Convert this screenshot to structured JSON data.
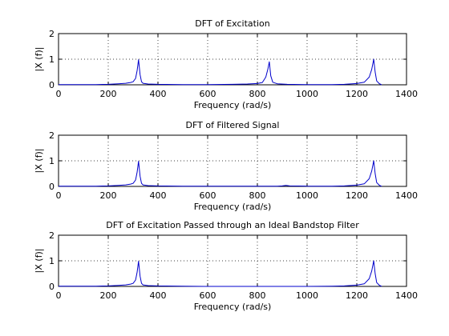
{
  "colors": {
    "series": "#0000cc",
    "axes": "#000000",
    "background": "#ffffff"
  },
  "chart_data": [
    {
      "type": "line",
      "title": "DFT of Excitation",
      "xlabel": "Frequency (rad/s)",
      "ylabel": "|X (f)|",
      "xlim": [
        0,
        1400
      ],
      "ylim": [
        0,
        2
      ],
      "xticks": [
        0,
        200,
        400,
        600,
        800,
        1000,
        1200,
        1400
      ],
      "yticks": [
        0,
        1,
        2
      ],
      "grid": true,
      "series": [
        {
          "x": [
            0,
            150,
            200,
            240,
            270,
            290,
            300,
            310,
            316,
            322,
            328,
            334,
            340,
            360,
            400,
            500,
            600,
            700,
            760,
            800,
            820,
            834,
            842,
            848,
            854,
            862,
            880,
            920,
            1000,
            1100,
            1150,
            1200,
            1230,
            1250,
            1260,
            1268,
            1274,
            1280,
            1290,
            1300
          ],
          "y": [
            0.01,
            0.01,
            0.02,
            0.04,
            0.06,
            0.09,
            0.12,
            0.25,
            0.55,
            0.98,
            0.4,
            0.12,
            0.06,
            0.03,
            0.02,
            0.01,
            0.01,
            0.02,
            0.03,
            0.05,
            0.09,
            0.3,
            0.6,
            0.9,
            0.35,
            0.1,
            0.04,
            0.02,
            0.01,
            0.01,
            0.02,
            0.05,
            0.1,
            0.3,
            0.6,
            1.0,
            0.5,
            0.15,
            0.05,
            0.0
          ]
        }
      ]
    },
    {
      "type": "line",
      "title": "DFT of Filtered Signal",
      "xlabel": "Frequency (rad/s)",
      "ylabel": "|X (f)|",
      "xlim": [
        0,
        1400
      ],
      "ylim": [
        0,
        2
      ],
      "xticks": [
        0,
        200,
        400,
        600,
        800,
        1000,
        1200,
        1400
      ],
      "yticks": [
        0,
        1,
        2
      ],
      "grid": true,
      "series": [
        {
          "x": [
            0,
            150,
            200,
            240,
            270,
            290,
            300,
            310,
            316,
            322,
            328,
            334,
            340,
            360,
            400,
            500,
            600,
            700,
            800,
            880,
            900,
            915,
            930,
            1000,
            1100,
            1150,
            1200,
            1230,
            1250,
            1260,
            1268,
            1274,
            1280,
            1290,
            1300
          ],
          "y": [
            0.01,
            0.01,
            0.02,
            0.04,
            0.06,
            0.09,
            0.12,
            0.25,
            0.55,
            0.98,
            0.4,
            0.12,
            0.06,
            0.03,
            0.02,
            0.01,
            0.01,
            0.01,
            0.01,
            0.01,
            0.02,
            0.04,
            0.02,
            0.01,
            0.01,
            0.02,
            0.05,
            0.1,
            0.3,
            0.6,
            1.0,
            0.5,
            0.15,
            0.05,
            0.0
          ]
        }
      ]
    },
    {
      "type": "line",
      "title": "DFT of Excitation Passed through an Ideal Bandstop Filter",
      "xlabel": "Frequency (rad/s)",
      "ylabel": "|X (f)|",
      "xlim": [
        0,
        1400
      ],
      "ylim": [
        0,
        2
      ],
      "xticks": [
        0,
        200,
        400,
        600,
        800,
        1000,
        1200,
        1400
      ],
      "yticks": [
        0,
        1,
        2
      ],
      "grid": true,
      "series": [
        {
          "x": [
            0,
            150,
            200,
            240,
            270,
            290,
            300,
            310,
            316,
            322,
            328,
            334,
            340,
            360,
            400,
            500,
            600,
            700,
            800,
            900,
            1000,
            1100,
            1150,
            1200,
            1230,
            1250,
            1260,
            1268,
            1274,
            1280,
            1290,
            1300
          ],
          "y": [
            0.01,
            0.01,
            0.02,
            0.04,
            0.06,
            0.09,
            0.12,
            0.25,
            0.55,
            0.98,
            0.4,
            0.12,
            0.06,
            0.03,
            0.02,
            0.01,
            0.0,
            0.0,
            0.0,
            0.0,
            0.0,
            0.01,
            0.02,
            0.05,
            0.1,
            0.3,
            0.6,
            1.0,
            0.5,
            0.15,
            0.05,
            0.0
          ]
        }
      ]
    }
  ]
}
